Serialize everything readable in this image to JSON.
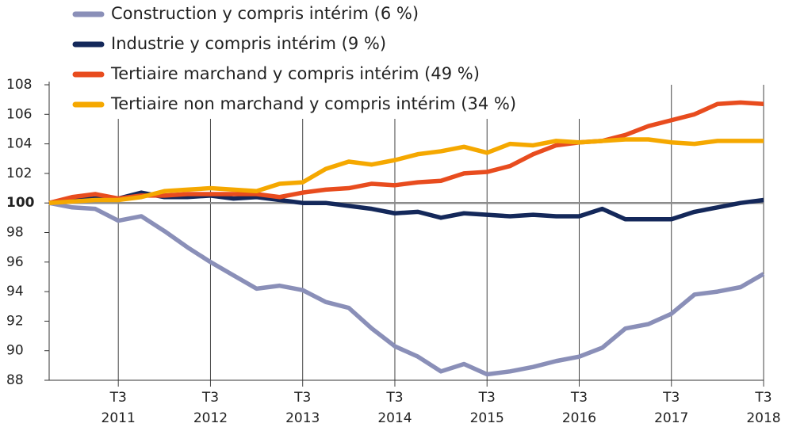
{
  "chart_data": {
    "type": "line",
    "categories": [
      null,
      null,
      null,
      "T3 2011",
      null,
      null,
      null,
      "T3 2012",
      null,
      null,
      null,
      "T3 2013",
      null,
      null,
      null,
      "T3 2014",
      null,
      null,
      null,
      "T3 2015",
      null,
      null,
      null,
      "T3 2016",
      null,
      null,
      null,
      "T3 2017",
      null,
      null,
      null,
      "T3 2018"
    ],
    "series": [
      {
        "name": "Construction y compris intérim (6 %)",
        "color": "#8a8fb8",
        "values": [
          100,
          99.7,
          99.6,
          98.8,
          99.1,
          98.1,
          97,
          96,
          95.1,
          94.2,
          94.4,
          94.1,
          93.3,
          92.9,
          91.5,
          90.3,
          89.6,
          88.6,
          89.1,
          88.4,
          88.6,
          88.9,
          89.3,
          89.6,
          90.2,
          91.5,
          91.8,
          92.5,
          93.8,
          94,
          94.3,
          95.2
        ]
      },
      {
        "name": "Industrie y compris intérim (9 %)",
        "color": "#14285a",
        "values": [
          100,
          100.2,
          100.3,
          100.3,
          100.7,
          100.4,
          100.4,
          100.5,
          100.3,
          100.4,
          100.2,
          100,
          100,
          99.8,
          99.6,
          99.3,
          99.4,
          99,
          99.3,
          99.2,
          99.1,
          99.2,
          99.1,
          99.1,
          99.6,
          98.9,
          98.9,
          98.9,
          99.4,
          99.7,
          100,
          100.2
        ]
      },
      {
        "name": "Tertiaire marchand y compris intérim (49 %)",
        "color": "#e84c1e",
        "values": [
          100,
          100.4,
          100.6,
          100.3,
          100.5,
          100.5,
          100.6,
          100.6,
          100.6,
          100.6,
          100.4,
          100.7,
          100.9,
          101,
          101.3,
          101.2,
          101.4,
          101.5,
          102,
          102.1,
          102.5,
          103.3,
          103.9,
          104.1,
          104.2,
          104.6,
          105.2,
          105.6,
          106,
          106.7,
          106.8,
          106.7
        ]
      },
      {
        "name": "Tertiaire non marchand y compris intérim (34 %)",
        "color": "#f5a800",
        "values": [
          100,
          100.1,
          100.2,
          100.2,
          100.4,
          100.8,
          100.9,
          101,
          100.9,
          100.8,
          101.3,
          101.4,
          102.3,
          102.8,
          102.6,
          102.9,
          103.3,
          103.5,
          103.8,
          103.4,
          104,
          103.9,
          104.2,
          104.1,
          104.2,
          104.3,
          104.3,
          104.1,
          104,
          104.2,
          104.2,
          104.2
        ]
      }
    ],
    "ylim": [
      88,
      108
    ],
    "yticks": [
      88,
      90,
      92,
      94,
      96,
      98,
      100,
      102,
      104,
      106,
      108
    ],
    "baseline": 100
  }
}
